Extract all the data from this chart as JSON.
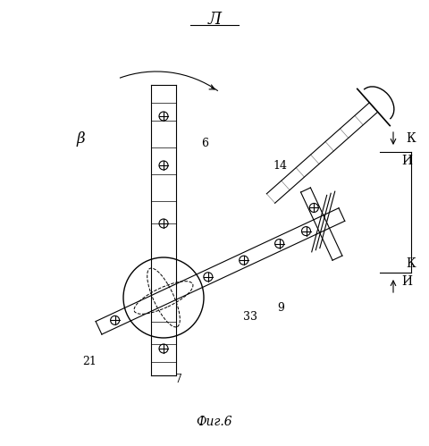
{
  "title": "Л",
  "subtitle": "Фиг.6",
  "background_color": "#ffffff",
  "line_color": "#000000",
  "fig_width": 4.8,
  "fig_height": 4.99,
  "dpi": 100,
  "labels": {
    "beta": "β",
    "num6": "6",
    "num7": "7",
    "num9": "9",
    "num14": "14",
    "num21": "21",
    "num33": "33",
    "K": "К",
    "I": "И"
  }
}
